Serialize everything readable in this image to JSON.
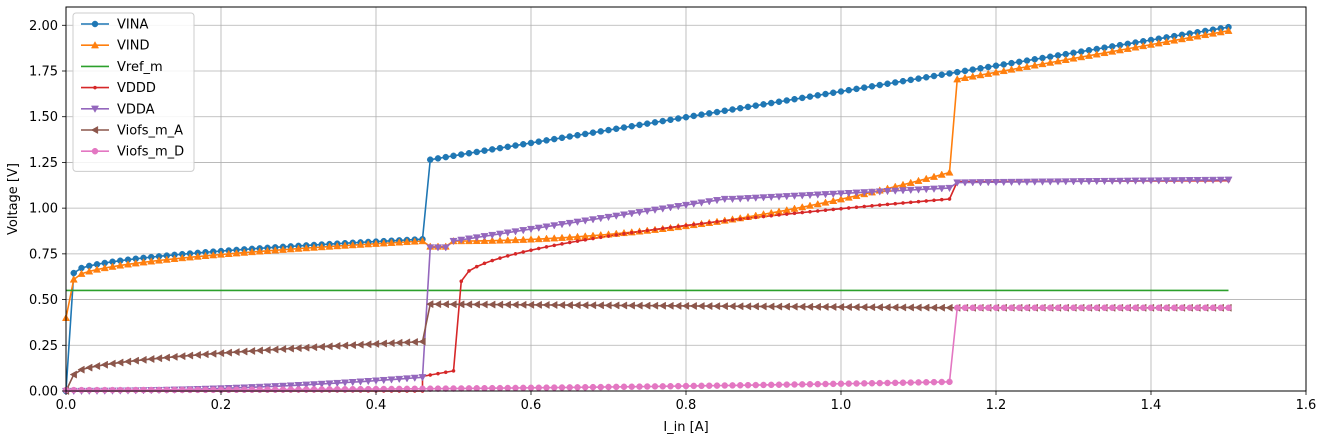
{
  "chart_data": {
    "type": "line",
    "title": "",
    "xlabel": "I_in [A]",
    "ylabel": "Voltage [V]",
    "xlim": [
      0,
      1.6
    ],
    "ylim": [
      0,
      2.1
    ],
    "xticks": [
      0,
      0.2,
      0.4,
      0.6,
      0.8,
      1.0,
      1.2,
      1.4,
      1.6
    ],
    "xtick_labels": [
      "0.0",
      "0.2",
      "0.4",
      "0.6",
      "0.8",
      "1.0",
      "1.2",
      "1.4",
      "1.6"
    ],
    "yticks": [
      0,
      0.25,
      0.5,
      0.75,
      1.0,
      1.25,
      1.5,
      1.75,
      2.0
    ],
    "ytick_labels": [
      "0.00",
      "0.25",
      "0.50",
      "0.75",
      "1.00",
      "1.25",
      "1.50",
      "1.75",
      "2.00"
    ],
    "grid": true,
    "legend_position": "top-left",
    "x_step": 0.01,
    "x_max": 1.5,
    "series": [
      {
        "name": "VINA",
        "color": "#1f77b4",
        "marker": "circle",
        "segments": [
          {
            "x": [
              0,
              0.01
            ],
            "y": [
              0.0,
              0.645
            ]
          },
          {
            "x": [
              0.01,
              0.46
            ],
            "y": [
              0.645,
              0.83
            ],
            "shape": "sqrt"
          },
          {
            "x": [
              0.47,
              1.5
            ],
            "y": [
              1.265,
              1.99
            ]
          }
        ]
      },
      {
        "name": "VIND",
        "color": "#ff7f0e",
        "marker": "triangle-up",
        "segments": [
          {
            "x": [
              0,
              0.01
            ],
            "y": [
              0.4,
              0.61
            ]
          },
          {
            "x": [
              0.01,
              0.46
            ],
            "y": [
              0.61,
              0.82
            ],
            "shape": "sqrt"
          },
          {
            "x": [
              0.47,
              0.49
            ],
            "y": [
              0.79,
              0.79
            ]
          },
          {
            "x": [
              0.5,
              1.14
            ],
            "y": [
              0.82,
              1.195
            ],
            "shape": "convex"
          },
          {
            "x": [
              1.15,
              1.5
            ],
            "y": [
              1.705,
              1.97
            ]
          }
        ]
      },
      {
        "name": "Vref_m",
        "color": "#2ca02c",
        "marker": "none",
        "segments": [
          {
            "x": [
              0,
              1.5
            ],
            "y": [
              0.55,
              0.55
            ]
          }
        ]
      },
      {
        "name": "VDDD",
        "color": "#d62728",
        "marker": "small-dot",
        "segments": [
          {
            "x": [
              0,
              0.46
            ],
            "y": [
              0.0,
              0.0
            ]
          },
          {
            "x": [
              0.46,
              0.5
            ],
            "y": [
              0.08,
              0.11
            ]
          },
          {
            "x": [
              0.51,
              1.14
            ],
            "y": [
              0.6,
              1.05
            ],
            "shape": "sqrt"
          },
          {
            "x": [
              1.15,
              1.5
            ],
            "y": [
              1.145,
              1.15
            ]
          }
        ]
      },
      {
        "name": "VDDA",
        "color": "#9467bd",
        "marker": "triangle-down",
        "segments": [
          {
            "x": [
              0,
              0.46
            ],
            "y": [
              0.0,
              0.075
            ],
            "shape": "convex"
          },
          {
            "x": [
              0.47,
              0.49
            ],
            "y": [
              0.785,
              0.785
            ]
          },
          {
            "x": [
              0.5,
              0.85
            ],
            "y": [
              0.82,
              1.05
            ]
          },
          {
            "x": [
              0.86,
              1.14
            ],
            "y": [
              1.05,
              1.11
            ]
          },
          {
            "x": [
              1.15,
              1.5
            ],
            "y": [
              1.14,
              1.155
            ]
          }
        ]
      },
      {
        "name": "Viofs_m_A",
        "color": "#8c564b",
        "marker": "triangle-left",
        "segments": [
          {
            "x": [
              0,
              0.01
            ],
            "y": [
              0.0,
              0.09
            ]
          },
          {
            "x": [
              0.01,
              0.46
            ],
            "y": [
              0.09,
              0.27
            ],
            "shape": "sqrt"
          },
          {
            "x": [
              0.47,
              1.15
            ],
            "y": [
              0.475,
              0.455
            ]
          },
          {
            "x": [
              1.16,
              1.5
            ],
            "y": [
              0.455,
              0.455
            ]
          }
        ]
      },
      {
        "name": "Viofs_m_D",
        "color": "#e377c2",
        "marker": "circle",
        "segments": [
          {
            "x": [
              0,
              1.14
            ],
            "y": [
              0.005,
              0.05
            ],
            "shape": "convex"
          },
          {
            "x": [
              1.15,
              1.5
            ],
            "y": [
              0.455,
              0.455
            ]
          }
        ]
      }
    ]
  }
}
